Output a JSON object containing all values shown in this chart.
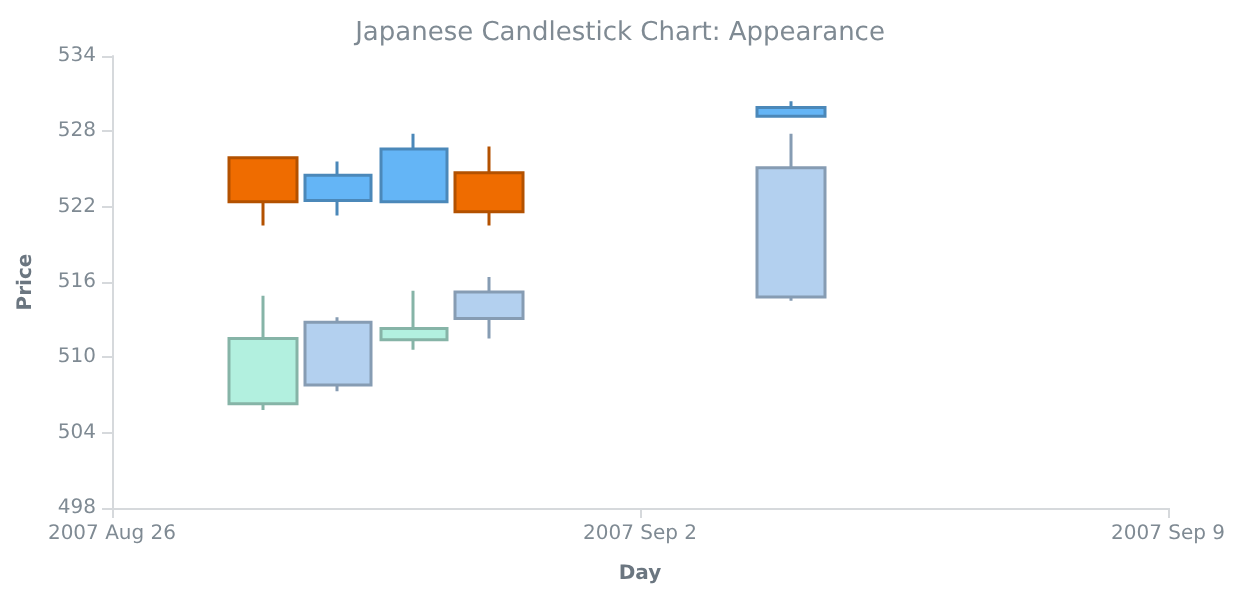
{
  "chart_data": {
    "type": "candlestick",
    "title": "Japanese Candlestick Chart: Appearance",
    "xlabel": "Day",
    "ylabel": "Price",
    "xlim": [
      "2007-08-26",
      "2007-09-09"
    ],
    "xticks": [
      {
        "value": "2007-08-26",
        "label": "2007 Aug 26"
      },
      {
        "value": "2007-09-02",
        "label": "2007 Sep 2"
      },
      {
        "value": "2007-09-09",
        "label": "2007 Sep 9"
      }
    ],
    "ylim": [
      498,
      534
    ],
    "yticks": [
      498,
      504,
      510,
      516,
      522,
      528,
      534
    ],
    "grid": false,
    "series": [
      {
        "x": [
          "2007-08-28",
          "2007-08-29",
          "2007-08-30",
          "2007-08-31",
          "2007-09-04"
        ],
        "ohlc": [
          [
            525.9,
            525.9,
            520.5,
            522.4
          ],
          [
            522.5,
            525.6,
            521.3,
            524.5
          ],
          [
            522.4,
            527.8,
            522.4,
            526.6
          ],
          [
            524.7,
            526.8,
            520.5,
            521.6
          ],
          [
            529.2,
            530.4,
            529.2,
            529.9
          ]
        ],
        "colors": [
          "#ef6c00",
          "#64b5f6",
          "#64b5f6",
          "#ef6c00",
          "#64b5f6"
        ]
      },
      {
        "x": [
          "2007-08-28",
          "2007-08-29",
          "2007-08-30",
          "2007-08-31",
          "2007-09-04"
        ],
        "ohlc": [
          [
            511.5,
            514.9,
            505.8,
            506.3
          ],
          [
            507.8,
            513.2,
            507.3,
            512.8
          ],
          [
            512.3,
            515.3,
            510.6,
            511.4
          ],
          [
            513.1,
            516.4,
            511.5,
            515.2
          ],
          [
            514.8,
            527.8,
            514.5,
            525.1
          ]
        ],
        "colors": [
          "#b2f0df",
          "#b3d0ef",
          "#b2f0df",
          "#b3d0ef",
          "#b3d0ef"
        ]
      }
    ]
  }
}
